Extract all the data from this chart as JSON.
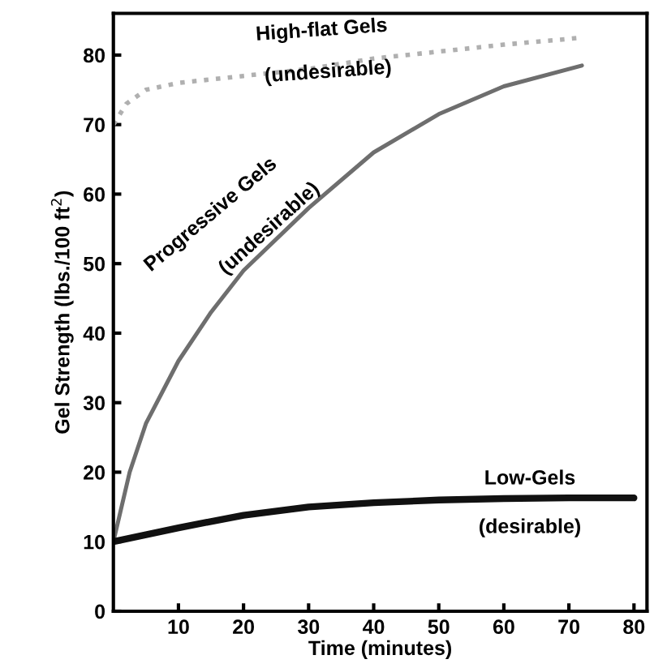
{
  "chart_data": {
    "type": "line",
    "xlabel": "Time (minutes)",
    "ylabel": "Gel Strength (lbs./100 ft$^{2}$)",
    "xlim": [
      0,
      82
    ],
    "ylim": [
      0,
      86
    ],
    "xticks": [
      10,
      20,
      30,
      40,
      50,
      60,
      70,
      80
    ],
    "yticks": [
      0,
      10,
      20,
      30,
      40,
      50,
      60,
      70,
      80
    ],
    "grid": false,
    "legend": false,
    "marker": "none",
    "series": [
      {
        "name": "High-flat Gels",
        "color": "#b0b0b0",
        "line_style": "dotted",
        "x": [
          0,
          2,
          5,
          10,
          20,
          30,
          40,
          50,
          60,
          72
        ],
        "values": [
          70,
          73,
          75,
          76,
          77,
          78,
          79.5,
          80.5,
          81.5,
          82.5
        ]
      },
      {
        "name": "Progressive Gels",
        "color": "#6e6e6e",
        "line_style": "solid",
        "x": [
          0,
          2.5,
          5,
          10,
          15,
          20,
          30,
          40,
          50,
          60,
          72
        ],
        "values": [
          10,
          20,
          27,
          36,
          43,
          49,
          58,
          66,
          71.5,
          75.5,
          78.5
        ]
      },
      {
        "name": "Low-Gels",
        "color": "#111111",
        "line_style": "solid",
        "x": [
          0,
          10,
          20,
          30,
          40,
          50,
          60,
          70,
          80
        ],
        "values": [
          10,
          12,
          13.8,
          15,
          15.6,
          16,
          16.2,
          16.3,
          16.3
        ]
      }
    ],
    "annotations": [
      "(undesirable)",
      "(undesirable)",
      "(desirable)"
    ]
  }
}
